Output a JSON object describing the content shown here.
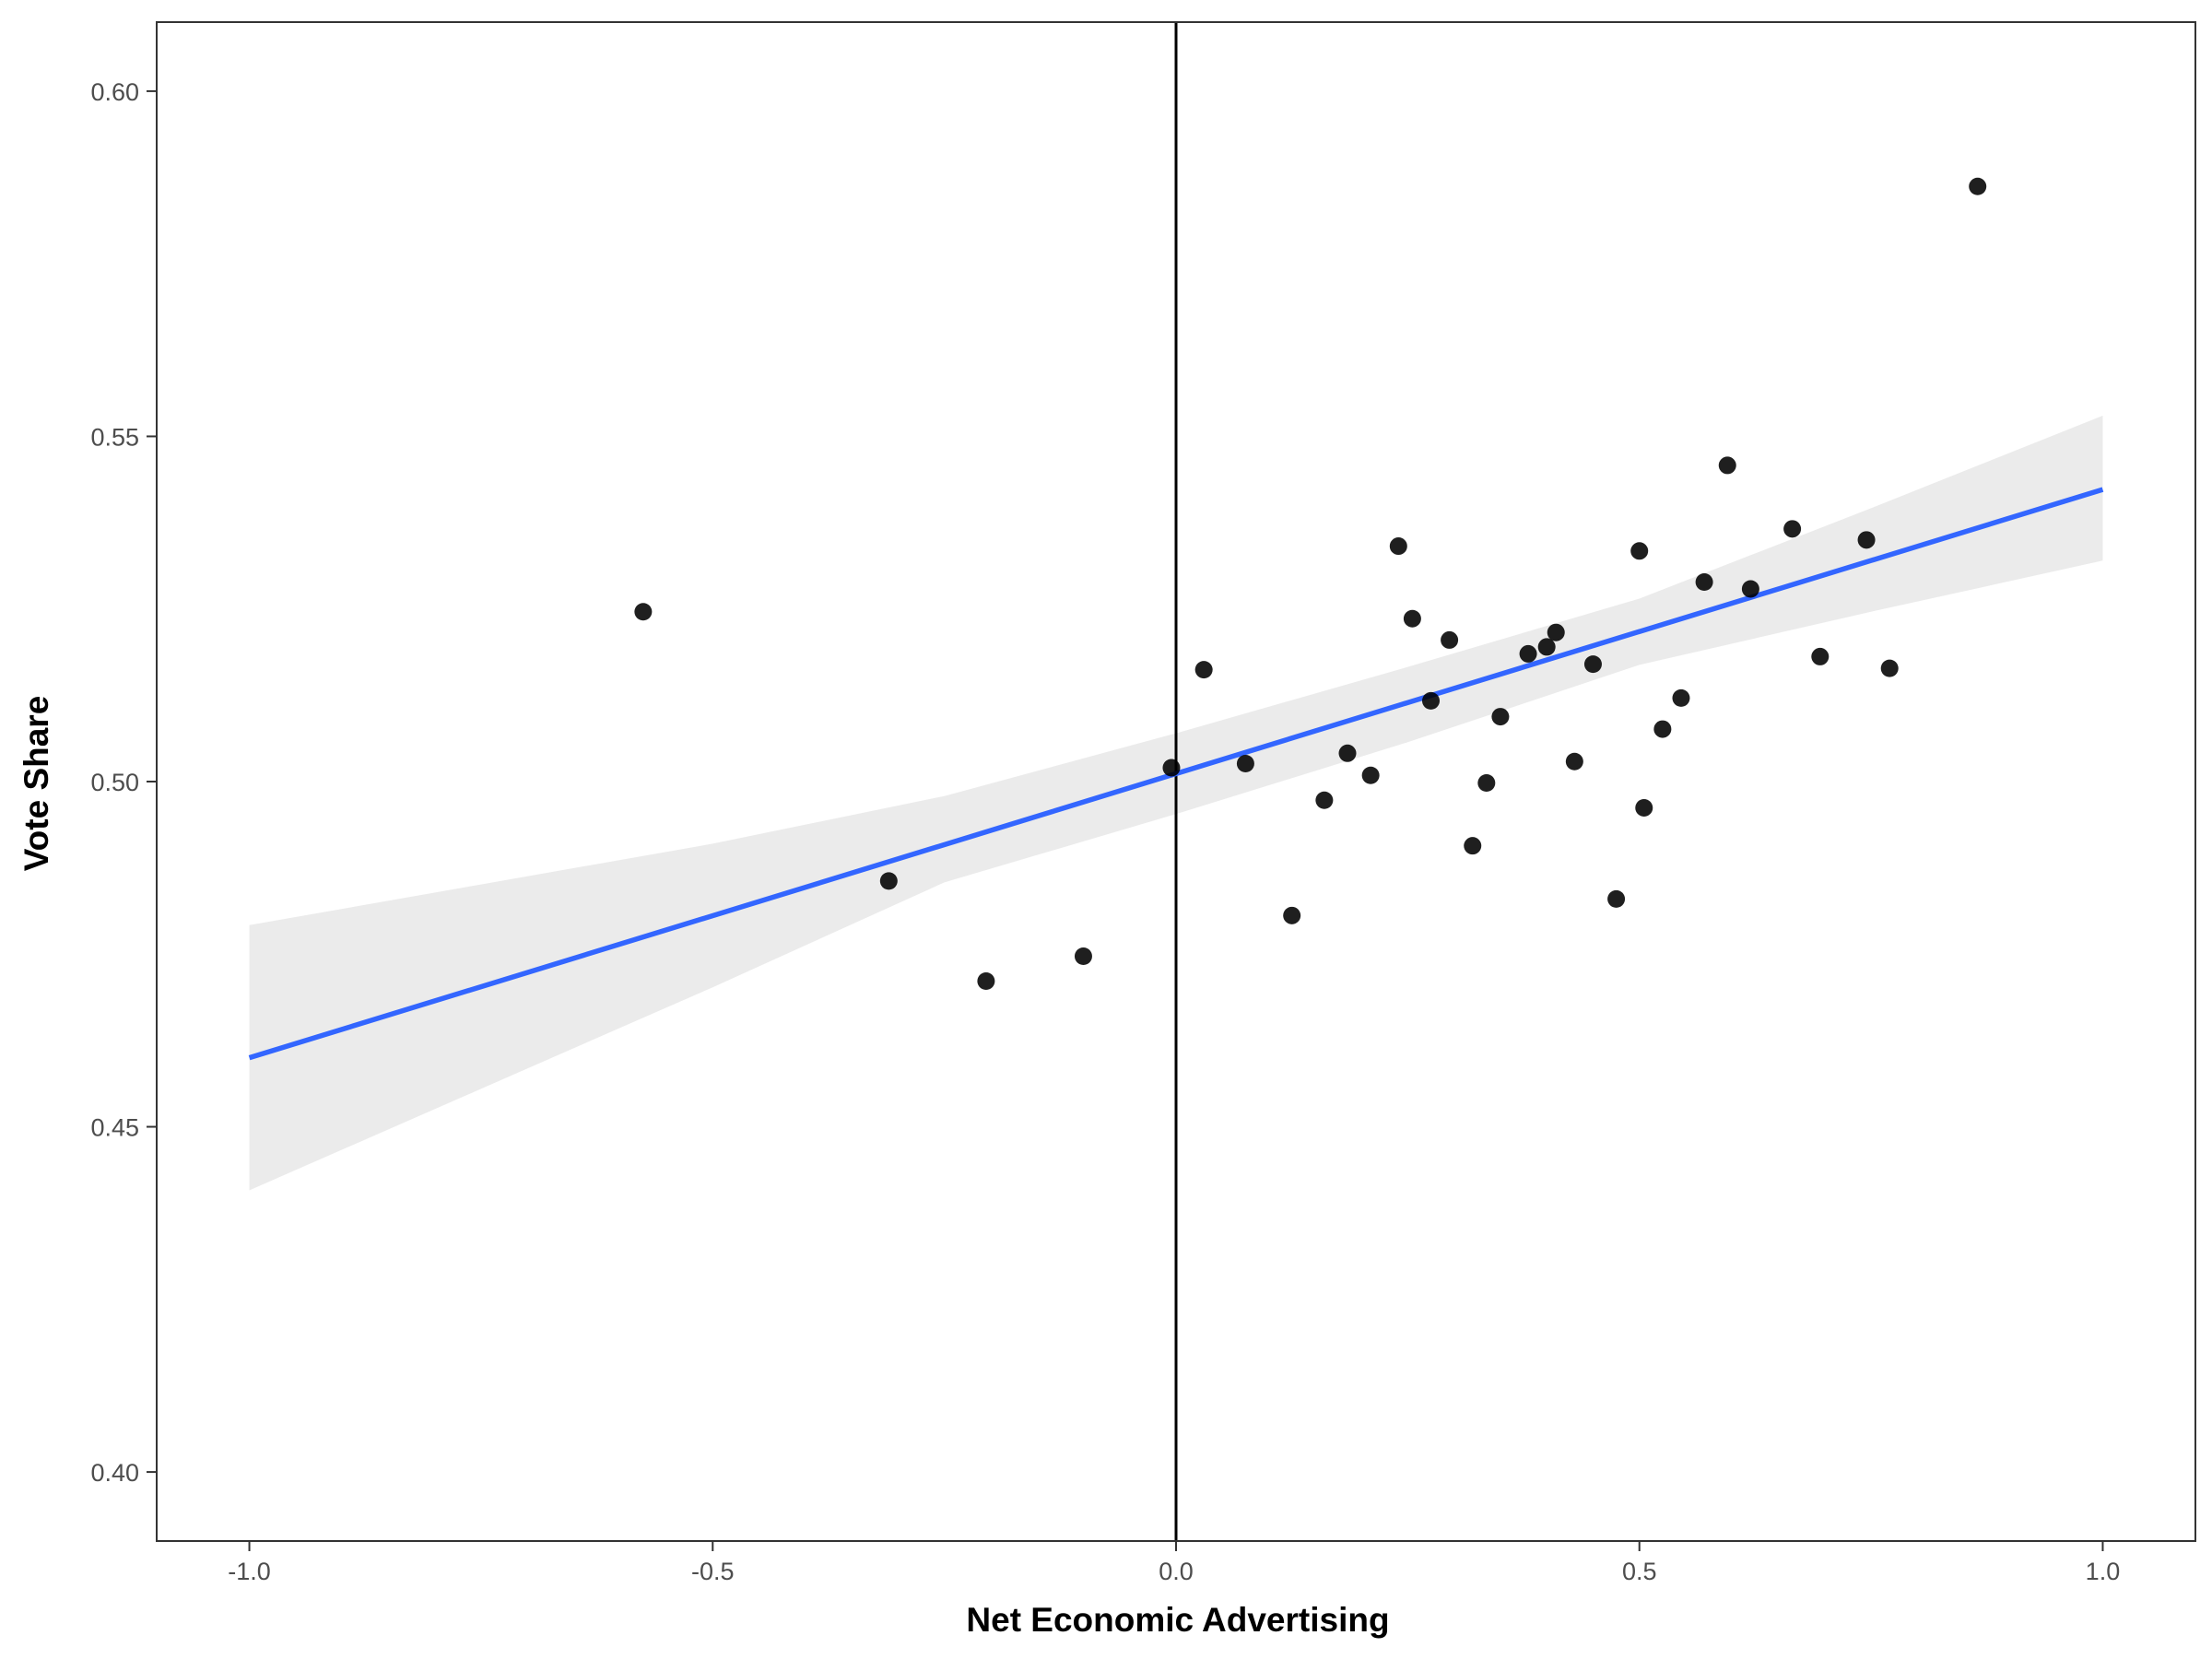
{
  "chart_data": {
    "type": "scatter",
    "title": "",
    "xlabel": "Net Economic Advertising",
    "ylabel": "Vote Share",
    "xlim": [
      -1.1,
      1.1
    ],
    "ylim": [
      0.39,
      0.61
    ],
    "x_ticks": [
      -1.0,
      -0.5,
      0.0,
      0.5,
      1.0
    ],
    "x_tick_labels": [
      "-1.0",
      "-0.5",
      "0.0",
      "0.5",
      "1.0"
    ],
    "y_ticks": [
      0.4,
      0.45,
      0.5,
      0.55,
      0.6
    ],
    "y_tick_labels": [
      "0.40",
      "0.45",
      "0.50",
      "0.55",
      "0.60"
    ],
    "grid": false,
    "legend": "none",
    "vertical_reference_line_x": 0.0,
    "points": [
      {
        "x": -0.575,
        "y": 0.5246
      },
      {
        "x": -0.31,
        "y": 0.4856
      },
      {
        "x": -0.205,
        "y": 0.4711
      },
      {
        "x": -0.1,
        "y": 0.4747
      },
      {
        "x": -0.005,
        "y": 0.502
      },
      {
        "x": 0.03,
        "y": 0.5162
      },
      {
        "x": 0.075,
        "y": 0.5026
      },
      {
        "x": 0.125,
        "y": 0.4806
      },
      {
        "x": 0.16,
        "y": 0.4973
      },
      {
        "x": 0.185,
        "y": 0.5041
      },
      {
        "x": 0.21,
        "y": 0.5009
      },
      {
        "x": 0.24,
        "y": 0.5341
      },
      {
        "x": 0.255,
        "y": 0.5236
      },
      {
        "x": 0.275,
        "y": 0.5117
      },
      {
        "x": 0.295,
        "y": 0.5205
      },
      {
        "x": 0.32,
        "y": 0.4907
      },
      {
        "x": 0.335,
        "y": 0.4998
      },
      {
        "x": 0.35,
        "y": 0.5094
      },
      {
        "x": 0.38,
        "y": 0.5185
      },
      {
        "x": 0.4,
        "y": 0.5195
      },
      {
        "x": 0.41,
        "y": 0.5216
      },
      {
        "x": 0.43,
        "y": 0.5029
      },
      {
        "x": 0.45,
        "y": 0.517
      },
      {
        "x": 0.475,
        "y": 0.483
      },
      {
        "x": 0.5,
        "y": 0.5334
      },
      {
        "x": 0.505,
        "y": 0.4962
      },
      {
        "x": 0.525,
        "y": 0.5076
      },
      {
        "x": 0.545,
        "y": 0.5121
      },
      {
        "x": 0.57,
        "y": 0.5289
      },
      {
        "x": 0.595,
        "y": 0.5458
      },
      {
        "x": 0.62,
        "y": 0.5279
      },
      {
        "x": 0.665,
        "y": 0.5366
      },
      {
        "x": 0.695,
        "y": 0.5181
      },
      {
        "x": 0.745,
        "y": 0.535
      },
      {
        "x": 0.77,
        "y": 0.5164
      },
      {
        "x": 0.865,
        "y": 0.5862
      }
    ],
    "fit_line": {
      "method": "linear",
      "start": {
        "x": -1.0,
        "y": 0.46
      },
      "end": {
        "x": 1.0,
        "y": 0.5423
      },
      "color": "#3366ff",
      "confidence_band": {
        "color": "#ebebeb",
        "x": [
          -1.0,
          -0.75,
          -0.5,
          -0.25,
          0.0,
          0.25,
          0.5,
          0.75,
          1.0
        ],
        "upper": [
          0.4792,
          0.4851,
          0.491,
          0.4979,
          0.507,
          0.5166,
          0.5265,
          0.5396,
          0.553
        ],
        "lower": [
          0.4408,
          0.4555,
          0.4702,
          0.4854,
          0.4953,
          0.5057,
          0.5169,
          0.5246,
          0.532
        ]
      }
    },
    "point_color": "#000000"
  }
}
